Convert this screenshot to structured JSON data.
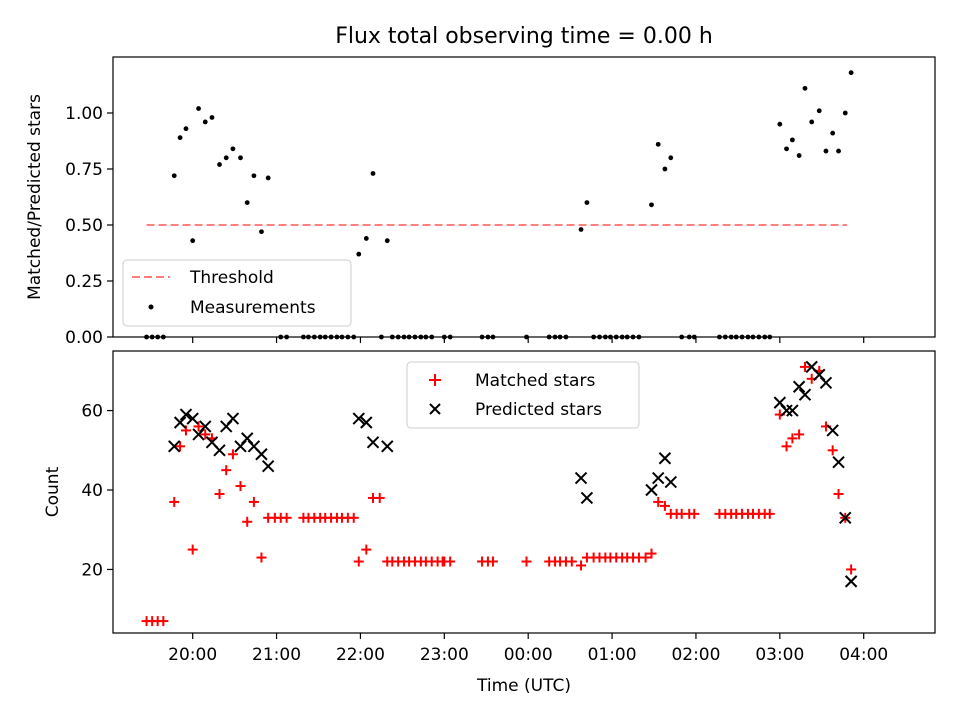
{
  "chart_data": [
    {
      "type": "scatter",
      "title": "Flux total observing time = 0.00 h",
      "xlabel": "",
      "ylabel": "Matched/Predicted stars",
      "xlim": [
        -0.4,
        9.4
      ],
      "ylim": [
        0.0,
        1.25
      ],
      "yticks": [
        0.0,
        0.25,
        0.5,
        0.75,
        1.0
      ],
      "ytick_labels": [
        "0.00",
        "0.25",
        "0.50",
        "0.75",
        "1.00"
      ],
      "xticks": [
        0.55,
        1.55,
        2.55,
        3.55,
        4.55,
        5.55,
        6.55,
        7.55,
        8.55
      ],
      "show_xtick_labels": false,
      "grid": false,
      "legend_position": "lower-left",
      "threshold": {
        "name": "Threshold",
        "x": [
          0.0,
          8.35
        ],
        "y": 0.5,
        "color": "#ff7f7f",
        "style": "dashed"
      },
      "series": [
        {
          "name": "Measurements",
          "color": "#000000",
          "marker": "dot",
          "points": [
            [
              0.0,
              0
            ],
            [
              0.067,
              0
            ],
            [
              0.133,
              0
            ],
            [
              0.2,
              0
            ],
            [
              0.33,
              0.72
            ],
            [
              0.4,
              0.89
            ],
            [
              0.47,
              0.93
            ],
            [
              0.55,
              0.43
            ],
            [
              0.62,
              1.02
            ],
            [
              0.7,
              0.96
            ],
            [
              0.78,
              0.98
            ],
            [
              0.87,
              0.77
            ],
            [
              0.95,
              0.8
            ],
            [
              1.03,
              0.84
            ],
            [
              1.12,
              0.8
            ],
            [
              1.2,
              0.6
            ],
            [
              1.28,
              0.72
            ],
            [
              1.37,
              0.47
            ],
            [
              1.45,
              0.71
            ],
            [
              1.6,
              0
            ],
            [
              1.67,
              0
            ],
            [
              1.87,
              0
            ],
            [
              1.93,
              0
            ],
            [
              2.0,
              0
            ],
            [
              2.07,
              0
            ],
            [
              2.13,
              0
            ],
            [
              2.2,
              0
            ],
            [
              2.27,
              0
            ],
            [
              2.33,
              0
            ],
            [
              2.4,
              0
            ],
            [
              2.47,
              0
            ],
            [
              2.53,
              0.37
            ],
            [
              2.62,
              0.44
            ],
            [
              2.7,
              0.73
            ],
            [
              2.8,
              0
            ],
            [
              2.87,
              0.43
            ],
            [
              2.93,
              0
            ],
            [
              3.0,
              0
            ],
            [
              3.07,
              0
            ],
            [
              3.13,
              0
            ],
            [
              3.2,
              0
            ],
            [
              3.27,
              0
            ],
            [
              3.33,
              0
            ],
            [
              3.4,
              0
            ],
            [
              3.55,
              0
            ],
            [
              3.62,
              0
            ],
            [
              4.0,
              0
            ],
            [
              4.07,
              0
            ],
            [
              4.13,
              0
            ],
            [
              4.53,
              0
            ],
            [
              4.8,
              0
            ],
            [
              4.87,
              0
            ],
            [
              4.93,
              0
            ],
            [
              5.0,
              0
            ],
            [
              5.18,
              0.48
            ],
            [
              5.25,
              0.6
            ],
            [
              5.33,
              0
            ],
            [
              5.4,
              0
            ],
            [
              5.47,
              0
            ],
            [
              5.53,
              0
            ],
            [
              5.6,
              0
            ],
            [
              5.67,
              0
            ],
            [
              5.73,
              0
            ],
            [
              5.8,
              0
            ],
            [
              5.87,
              0
            ],
            [
              6.02,
              0.59
            ],
            [
              6.1,
              0.86
            ],
            [
              6.18,
              0.75
            ],
            [
              6.25,
              0.8
            ],
            [
              6.38,
              0
            ],
            [
              6.47,
              0
            ],
            [
              6.53,
              0
            ],
            [
              6.83,
              0
            ],
            [
              6.9,
              0
            ],
            [
              6.97,
              0
            ],
            [
              7.03,
              0
            ],
            [
              7.1,
              0
            ],
            [
              7.17,
              0
            ],
            [
              7.23,
              0
            ],
            [
              7.3,
              0
            ],
            [
              7.37,
              0
            ],
            [
              7.43,
              0
            ],
            [
              7.55,
              0.95
            ],
            [
              7.63,
              0.84
            ],
            [
              7.7,
              0.88
            ],
            [
              7.78,
              0.81
            ],
            [
              7.85,
              1.11
            ],
            [
              7.93,
              0.96
            ],
            [
              8.02,
              1.01
            ],
            [
              8.1,
              0.83
            ],
            [
              8.18,
              0.91
            ],
            [
              8.25,
              0.83
            ],
            [
              8.33,
              1.0
            ],
            [
              8.4,
              1.18
            ]
          ]
        }
      ]
    },
    {
      "type": "scatter",
      "title": "",
      "xlabel": "Time (UTC)",
      "ylabel": "Count",
      "xlim": [
        -0.4,
        9.4
      ],
      "ylim": [
        4,
        75
      ],
      "yticks": [
        20,
        40,
        60
      ],
      "ytick_labels": [
        "20",
        "40",
        "60"
      ],
      "xticks": [
        0.55,
        1.55,
        2.55,
        3.55,
        4.55,
        5.55,
        6.55,
        7.55,
        8.55
      ],
      "xtick_labels": [
        "20:00",
        "21:00",
        "22:00",
        "23:00",
        "00:00",
        "01:00",
        "02:00",
        "03:00",
        "04:00"
      ],
      "grid": false,
      "legend_position": "upper-center",
      "series": [
        {
          "name": "Matched stars",
          "color": "#ff0000",
          "marker": "plus",
          "points": [
            [
              0.0,
              7
            ],
            [
              0.067,
              7
            ],
            [
              0.133,
              7
            ],
            [
              0.2,
              7
            ],
            [
              0.33,
              37
            ],
            [
              0.4,
              51
            ],
            [
              0.47,
              55
            ],
            [
              0.55,
              25
            ],
            [
              0.62,
              56
            ],
            [
              0.7,
              54
            ],
            [
              0.78,
              53
            ],
            [
              0.87,
              39
            ],
            [
              0.95,
              45
            ],
            [
              1.03,
              49
            ],
            [
              1.12,
              41
            ],
            [
              1.2,
              32
            ],
            [
              1.28,
              37
            ],
            [
              1.37,
              23
            ],
            [
              1.45,
              33
            ],
            [
              1.53,
              33
            ],
            [
              1.6,
              33
            ],
            [
              1.67,
              33
            ],
            [
              1.87,
              33
            ],
            [
              1.93,
              33
            ],
            [
              2.0,
              33
            ],
            [
              2.07,
              33
            ],
            [
              2.13,
              33
            ],
            [
              2.2,
              33
            ],
            [
              2.27,
              33
            ],
            [
              2.33,
              33
            ],
            [
              2.4,
              33
            ],
            [
              2.47,
              33
            ],
            [
              2.53,
              22
            ],
            [
              2.62,
              25
            ],
            [
              2.7,
              38
            ],
            [
              2.78,
              38
            ],
            [
              2.87,
              22
            ],
            [
              2.93,
              22
            ],
            [
              3.0,
              22
            ],
            [
              3.07,
              22
            ],
            [
              3.13,
              22
            ],
            [
              3.2,
              22
            ],
            [
              3.27,
              22
            ],
            [
              3.33,
              22
            ],
            [
              3.4,
              22
            ],
            [
              3.47,
              22
            ],
            [
              3.53,
              22
            ],
            [
              3.55,
              22
            ],
            [
              3.62,
              22
            ],
            [
              4.0,
              22
            ],
            [
              4.07,
              22
            ],
            [
              4.13,
              22
            ],
            [
              4.53,
              22
            ],
            [
              4.8,
              22
            ],
            [
              4.87,
              22
            ],
            [
              4.93,
              22
            ],
            [
              5.0,
              22
            ],
            [
              5.07,
              22
            ],
            [
              5.18,
              21
            ],
            [
              5.25,
              23
            ],
            [
              5.33,
              23
            ],
            [
              5.4,
              23
            ],
            [
              5.47,
              23
            ],
            [
              5.53,
              23
            ],
            [
              5.6,
              23
            ],
            [
              5.67,
              23
            ],
            [
              5.73,
              23
            ],
            [
              5.8,
              23
            ],
            [
              5.87,
              23
            ],
            [
              5.95,
              23
            ],
            [
              6.02,
              24
            ],
            [
              6.1,
              37
            ],
            [
              6.18,
              36
            ],
            [
              6.25,
              34
            ],
            [
              6.32,
              34
            ],
            [
              6.38,
              34
            ],
            [
              6.47,
              34
            ],
            [
              6.53,
              34
            ],
            [
              6.83,
              34
            ],
            [
              6.9,
              34
            ],
            [
              6.97,
              34
            ],
            [
              7.03,
              34
            ],
            [
              7.1,
              34
            ],
            [
              7.17,
              34
            ],
            [
              7.23,
              34
            ],
            [
              7.3,
              34
            ],
            [
              7.37,
              34
            ],
            [
              7.43,
              34
            ],
            [
              7.55,
              59
            ],
            [
              7.63,
              51
            ],
            [
              7.7,
              53
            ],
            [
              7.78,
              54
            ],
            [
              7.85,
              71
            ],
            [
              7.93,
              68
            ],
            [
              8.02,
              70
            ],
            [
              8.1,
              56
            ],
            [
              8.18,
              50
            ],
            [
              8.25,
              39
            ],
            [
              8.33,
              33
            ],
            [
              8.4,
              20
            ]
          ]
        },
        {
          "name": "Predicted stars",
          "color": "#000000",
          "marker": "x",
          "points": [
            [
              0.33,
              51
            ],
            [
              0.4,
              57
            ],
            [
              0.47,
              59
            ],
            [
              0.55,
              58
            ],
            [
              0.62,
              54
            ],
            [
              0.7,
              56
            ],
            [
              0.78,
              52
            ],
            [
              0.87,
              50
            ],
            [
              0.95,
              56
            ],
            [
              1.03,
              58
            ],
            [
              1.12,
              51
            ],
            [
              1.2,
              53
            ],
            [
              1.28,
              51
            ],
            [
              1.37,
              49
            ],
            [
              1.45,
              46
            ],
            [
              2.53,
              58
            ],
            [
              2.62,
              57
            ],
            [
              2.7,
              52
            ],
            [
              2.87,
              51
            ],
            [
              5.18,
              43
            ],
            [
              5.25,
              38
            ],
            [
              6.02,
              40
            ],
            [
              6.1,
              43
            ],
            [
              6.18,
              48
            ],
            [
              6.25,
              42
            ],
            [
              7.55,
              62
            ],
            [
              7.63,
              60
            ],
            [
              7.7,
              60
            ],
            [
              7.78,
              66
            ],
            [
              7.85,
              64
            ],
            [
              7.93,
              71
            ],
            [
              8.02,
              69
            ],
            [
              8.1,
              67
            ],
            [
              8.18,
              55
            ],
            [
              8.25,
              47
            ],
            [
              8.33,
              33
            ],
            [
              8.4,
              17
            ]
          ]
        }
      ]
    }
  ]
}
